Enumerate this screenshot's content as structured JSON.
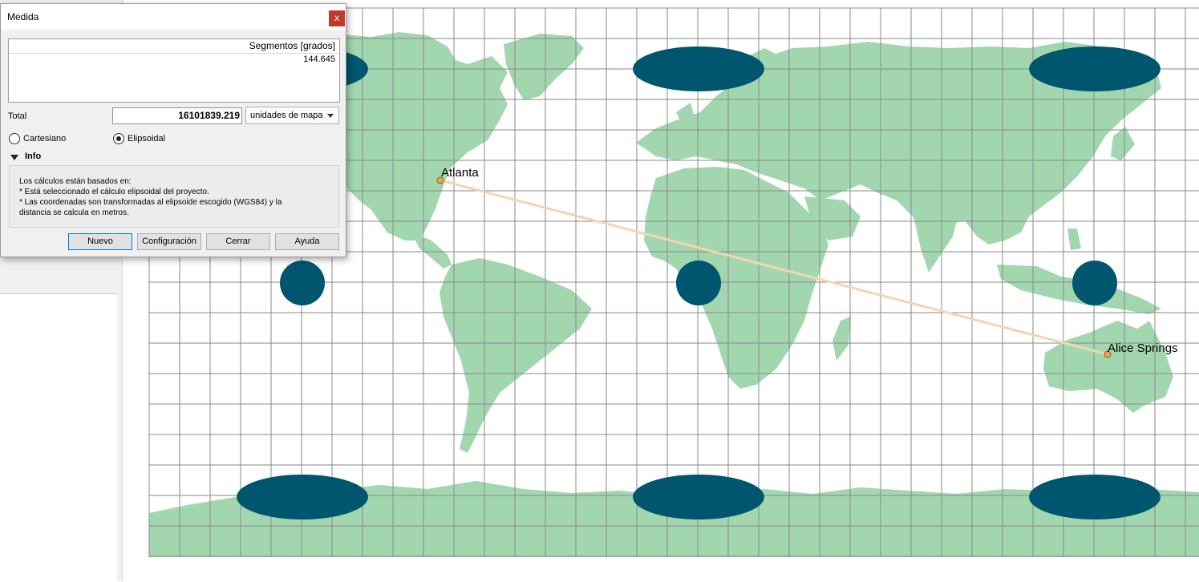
{
  "dialog": {
    "title": "Medida",
    "close_glyph": "x",
    "segments_header": "Segmentos [grados]",
    "segments": [
      "144.645"
    ],
    "total_label": "Total",
    "total_value": "16101839.219",
    "units_selected": "unidades de mapa",
    "radio_cartesian": "Cartesiano",
    "radio_ellipsoidal": "Elipsoidal",
    "selected_mode": "Elipsoidal",
    "info_title": "Info",
    "info_lines": [
      "Los cálculos están basados en:",
      "* Está seleccionado el cálculo elipsoidal del proyecto.",
      "* Las coordenadas son transformadas al elipsoide escogido (WGS84) y la",
      "distancia se calcula en metros."
    ],
    "buttons": {
      "new": "Nuevo",
      "config": "Configuración",
      "close": "Cerrar",
      "help": "Ayuda"
    }
  },
  "map": {
    "points": [
      {
        "name": "Atlanta"
      },
      {
        "name": "Alice Springs"
      }
    ],
    "colors": {
      "land": "#a2d6ae",
      "ocean": "#ffffff",
      "grid": "#8a8a8a",
      "ellipse": "#00556f",
      "line": "#f2d6b3",
      "point": "#f0a050"
    }
  }
}
